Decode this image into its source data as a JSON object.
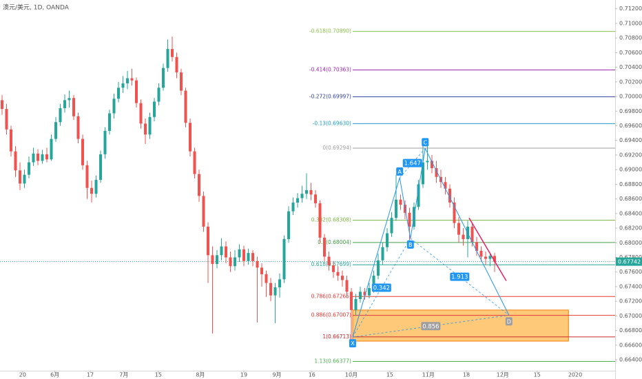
{
  "chart_data": {
    "type": "candlestick",
    "title": "澳元/美元, 1D, OANDA",
    "up_color": "#26a69a",
    "down_color": "#ef5350",
    "xlim": [
      -0.46,
      136.92
    ],
    "ylim": [
      0.6625,
      0.7132
    ],
    "xticks": [
      {
        "value": 4.6,
        "label": "20"
      },
      {
        "value": 11.8,
        "label": "6月"
      },
      {
        "value": 19.7,
        "label": "17"
      },
      {
        "value": 27.2,
        "label": "7月"
      },
      {
        "value": 34.9,
        "label": "15"
      },
      {
        "value": 44.3,
        "label": "8月"
      },
      {
        "value": 54.0,
        "label": "19"
      },
      {
        "value": 61.4,
        "label": "9月"
      },
      {
        "value": 69.2,
        "label": "16"
      },
      {
        "value": 78.0,
        "label": "10月"
      },
      {
        "value": 86.6,
        "label": "15"
      },
      {
        "value": 95.2,
        "label": "11月"
      },
      {
        "value": 103.7,
        "label": "18"
      },
      {
        "value": 111.8,
        "label": "12月"
      },
      {
        "value": 119.5,
        "label": "15"
      },
      {
        "value": 128.0,
        "label": "2020"
      }
    ],
    "yticks": [
      {
        "value": 0.664,
        "label": "0.66400"
      },
      {
        "value": 0.666,
        "label": "0.66600"
      },
      {
        "value": 0.668,
        "label": "0.66800"
      },
      {
        "value": 0.67,
        "label": "0.67000"
      },
      {
        "value": 0.672,
        "label": "0.67200"
      },
      {
        "value": 0.674,
        "label": "0.67400"
      },
      {
        "value": 0.676,
        "label": "0.67600"
      },
      {
        "value": 0.678,
        "label": "0.67800"
      },
      {
        "value": 0.68,
        "label": "0.68000"
      },
      {
        "value": 0.682,
        "label": "0.68200"
      },
      {
        "value": 0.684,
        "label": "0.68400"
      },
      {
        "value": 0.686,
        "label": "0.68600"
      },
      {
        "value": 0.688,
        "label": "0.68800"
      },
      {
        "value": 0.69,
        "label": "0.69000"
      },
      {
        "value": 0.692,
        "label": "0.69200"
      },
      {
        "value": 0.694,
        "label": "0.69400"
      },
      {
        "value": 0.696,
        "label": "0.69600"
      },
      {
        "value": 0.698,
        "label": "0.69800"
      },
      {
        "value": 0.7,
        "label": "0.70000"
      },
      {
        "value": 0.702,
        "label": "0.70200"
      },
      {
        "value": 0.704,
        "label": "0.70400"
      },
      {
        "value": 0.706,
        "label": "0.70600"
      },
      {
        "value": 0.708,
        "label": "0.70800"
      },
      {
        "value": 0.71,
        "label": "0.71000"
      },
      {
        "value": 0.712,
        "label": "0.71200"
      }
    ],
    "current_price": {
      "value": 0.67742,
      "label": "0.67742",
      "color": "#26a69a"
    },
    "fib_levels": [
      {
        "value": 0.7089,
        "label": "-0.618(0.70890)",
        "color": "#8bc34a"
      },
      {
        "value": 0.70363,
        "label": "-0.414(0.70363)",
        "color": "#9c27b0"
      },
      {
        "value": 0.69997,
        "label": "-0.272(0.69997)",
        "color": "#303f9f"
      },
      {
        "value": 0.6963,
        "label": "-0.13(0.69630)",
        "color": "#1e9bc8"
      },
      {
        "value": 0.69294,
        "label": "0(0.69294)",
        "color": "#9e9e9e"
      },
      {
        "value": 0.68308,
        "label": "0.382(0.68308)",
        "color": "#7cb342"
      },
      {
        "value": 0.68004,
        "label": "0.5(0.68004)",
        "color": "#43a047"
      },
      {
        "value": 0.67699,
        "label": "0.618(0.67699)",
        "color": "#26a69a"
      },
      {
        "value": 0.67265,
        "label": "0.786(0.67265)",
        "color": "#e53935"
      },
      {
        "value": 0.67007,
        "label": "0.886(0.67007)",
        "color": "#e53935"
      },
      {
        "value": 0.66713,
        "label": "1(0.66713)",
        "color": "#c62828"
      },
      {
        "value": 0.66377,
        "label": "1.13(0.66377)",
        "color": "#4caf50"
      }
    ],
    "zone": {
      "x": [
        78.3,
        126.5
      ],
      "y": [
        0.6708,
        0.66655
      ],
      "color": "#ffb74d"
    },
    "trendline": {
      "x": [
        104.3,
        112.6
      ],
      "y": [
        0.6834,
        0.6748
      ],
      "color": "#e91e63"
    },
    "pattern": {
      "color": "#2196f3",
      "points": [
        {
          "label": "X",
          "x": 78.3,
          "y": 0.6671
        },
        {
          "label": "A",
          "x": 88.8,
          "y": 0.6889
        },
        {
          "label": "B",
          "x": 91.2,
          "y": 0.6806
        },
        {
          "label": "C",
          "x": 94.5,
          "y": 0.6929
        },
        {
          "label": "D",
          "x": 113.2,
          "y": 0.6701
        }
      ],
      "ratios": [
        0.342,
        1.647,
        1.913,
        0.856
      ]
    },
    "candles": [
      [
        0.6995,
        0.7002,
        0.6975,
        0.6983
      ],
      [
        0.6983,
        0.699,
        0.6948,
        0.6955
      ],
      [
        0.6955,
        0.696,
        0.6918,
        0.6925
      ],
      [
        0.6925,
        0.6932,
        0.689,
        0.6899
      ],
      [
        0.6899,
        0.691,
        0.6872,
        0.6881
      ],
      [
        0.6881,
        0.69,
        0.6875,
        0.6893
      ],
      [
        0.6893,
        0.6918,
        0.6888,
        0.691
      ],
      [
        0.691,
        0.693,
        0.6905,
        0.6922
      ],
      [
        0.6922,
        0.6928,
        0.6906,
        0.6912
      ],
      [
        0.6912,
        0.6927,
        0.6908,
        0.6921
      ],
      [
        0.6921,
        0.693,
        0.691,
        0.6914
      ],
      [
        0.6914,
        0.6948,
        0.6912,
        0.6942
      ],
      [
        0.6942,
        0.6972,
        0.6938,
        0.6965
      ],
      [
        0.6965,
        0.699,
        0.696,
        0.6984
      ],
      [
        0.6984,
        0.7003,
        0.6978,
        0.6995
      ],
      [
        0.6995,
        0.7008,
        0.6985,
        0.6998
      ],
      [
        0.6998,
        0.7002,
        0.6968,
        0.6973
      ],
      [
        0.6973,
        0.6978,
        0.6936,
        0.6942
      ],
      [
        0.6942,
        0.6948,
        0.69,
        0.6906
      ],
      [
        0.6906,
        0.6912,
        0.686,
        0.6875
      ],
      [
        0.6875,
        0.6885,
        0.6855,
        0.6867
      ],
      [
        0.6867,
        0.6892,
        0.6862,
        0.6886
      ],
      [
        0.6886,
        0.6926,
        0.6882,
        0.6921
      ],
      [
        0.6921,
        0.6958,
        0.6915,
        0.6953
      ],
      [
        0.6953,
        0.6982,
        0.6948,
        0.6977
      ],
      [
        0.6977,
        0.7004,
        0.697,
        0.6997
      ],
      [
        0.6997,
        0.702,
        0.6992,
        0.7012
      ],
      [
        0.7012,
        0.7028,
        0.7005,
        0.7018
      ],
      [
        0.7018,
        0.7035,
        0.701,
        0.7025
      ],
      [
        0.7025,
        0.7038,
        0.7015,
        0.7022
      ],
      [
        0.7022,
        0.7026,
        0.6985,
        0.6991
      ],
      [
        0.6991,
        0.6996,
        0.6956,
        0.6963
      ],
      [
        0.6963,
        0.697,
        0.6935,
        0.6948
      ],
      [
        0.6948,
        0.6978,
        0.6942,
        0.6972
      ],
      [
        0.6972,
        0.6998,
        0.6966,
        0.6993
      ],
      [
        0.6993,
        0.7018,
        0.6988,
        0.7012
      ],
      [
        0.7012,
        0.7045,
        0.7008,
        0.7039
      ],
      [
        0.7039,
        0.7078,
        0.7034,
        0.7065
      ],
      [
        0.7065,
        0.7082,
        0.7048,
        0.7054
      ],
      [
        0.7054,
        0.706,
        0.7025,
        0.7033
      ],
      [
        0.7033,
        0.7038,
        0.7002,
        0.7008
      ],
      [
        0.7008,
        0.7012,
        0.6958,
        0.6964
      ],
      [
        0.6964,
        0.697,
        0.6918,
        0.6925
      ],
      [
        0.6925,
        0.693,
        0.6888,
        0.6894
      ],
      [
        0.6894,
        0.69,
        0.6856,
        0.6864
      ],
      [
        0.6864,
        0.687,
        0.6815,
        0.6822
      ],
      [
        0.6822,
        0.6828,
        0.6745,
        0.6783
      ],
      [
        0.6783,
        0.6795,
        0.6676,
        0.6771
      ],
      [
        0.6771,
        0.679,
        0.6765,
        0.6783
      ],
      [
        0.6783,
        0.6806,
        0.6776,
        0.6795
      ],
      [
        0.6795,
        0.6802,
        0.6772,
        0.678
      ],
      [
        0.678,
        0.6788,
        0.676,
        0.6768
      ],
      [
        0.6768,
        0.679,
        0.6762,
        0.678
      ],
      [
        0.678,
        0.6798,
        0.6774,
        0.6791
      ],
      [
        0.6791,
        0.6796,
        0.6768,
        0.6775
      ],
      [
        0.6775,
        0.6792,
        0.677,
        0.6786
      ],
      [
        0.6786,
        0.679,
        0.6768,
        0.6775
      ],
      [
        0.6775,
        0.6781,
        0.6691,
        0.6766
      ],
      [
        0.6766,
        0.6772,
        0.674,
        0.6757
      ],
      [
        0.6757,
        0.6762,
        0.6726,
        0.6745
      ],
      [
        0.6745,
        0.6752,
        0.672,
        0.6728
      ],
      [
        0.6728,
        0.6745,
        0.669,
        0.6739
      ],
      [
        0.6739,
        0.6758,
        0.6725,
        0.675
      ],
      [
        0.675,
        0.681,
        0.6745,
        0.6805
      ],
      [
        0.6805,
        0.685,
        0.68,
        0.6843
      ],
      [
        0.6843,
        0.6862,
        0.6838,
        0.6855
      ],
      [
        0.6855,
        0.6868,
        0.6848,
        0.6861
      ],
      [
        0.6861,
        0.6878,
        0.6855,
        0.6867
      ],
      [
        0.6867,
        0.6895,
        0.686,
        0.6872
      ],
      [
        0.6872,
        0.6882,
        0.6858,
        0.6866
      ],
      [
        0.6866,
        0.6872,
        0.6848,
        0.6854
      ],
      [
        0.6854,
        0.6858,
        0.68,
        0.6807
      ],
      [
        0.6807,
        0.6812,
        0.6775,
        0.6781
      ],
      [
        0.6781,
        0.6788,
        0.6762,
        0.6769
      ],
      [
        0.6769,
        0.6775,
        0.6752,
        0.676
      ],
      [
        0.676,
        0.6768,
        0.6748,
        0.6755
      ],
      [
        0.6755,
        0.6762,
        0.674,
        0.6749
      ],
      [
        0.6749,
        0.6755,
        0.6725,
        0.6733
      ],
      [
        0.6733,
        0.6738,
        0.6667,
        0.6708
      ],
      [
        0.6708,
        0.673,
        0.67,
        0.6723
      ],
      [
        0.6723,
        0.674,
        0.6718,
        0.6733
      ],
      [
        0.6733,
        0.6738,
        0.6722,
        0.6728
      ],
      [
        0.6728,
        0.6745,
        0.6724,
        0.6738
      ],
      [
        0.6738,
        0.6762,
        0.6732,
        0.6755
      ],
      [
        0.6755,
        0.6785,
        0.675,
        0.6776
      ],
      [
        0.6776,
        0.68,
        0.677,
        0.6794
      ],
      [
        0.6794,
        0.682,
        0.6788,
        0.6813
      ],
      [
        0.6813,
        0.6842,
        0.6808,
        0.6834
      ],
      [
        0.6834,
        0.6893,
        0.683,
        0.6859
      ],
      [
        0.6859,
        0.6866,
        0.6845,
        0.6852
      ],
      [
        0.6852,
        0.6858,
        0.6832,
        0.6841
      ],
      [
        0.6841,
        0.6848,
        0.6804,
        0.6822
      ],
      [
        0.6822,
        0.6855,
        0.6818,
        0.6849
      ],
      [
        0.6849,
        0.6886,
        0.6845,
        0.688
      ],
      [
        0.688,
        0.6939,
        0.6875,
        0.691
      ],
      [
        0.691,
        0.6932,
        0.69,
        0.6912
      ],
      [
        0.6912,
        0.692,
        0.6895,
        0.6902
      ],
      [
        0.6902,
        0.6912,
        0.6882,
        0.689
      ],
      [
        0.689,
        0.69,
        0.6875,
        0.6883
      ],
      [
        0.6883,
        0.689,
        0.6866,
        0.6874
      ],
      [
        0.6874,
        0.688,
        0.6848,
        0.6855
      ],
      [
        0.6855,
        0.6862,
        0.682,
        0.6827
      ],
      [
        0.6827,
        0.6835,
        0.68,
        0.6811
      ],
      [
        0.6811,
        0.682,
        0.6796,
        0.6805
      ],
      [
        0.6805,
        0.683,
        0.678,
        0.6822
      ],
      [
        0.6822,
        0.6826,
        0.6795,
        0.6801
      ],
      [
        0.6801,
        0.6808,
        0.6782,
        0.6789
      ],
      [
        0.6789,
        0.6795,
        0.6774,
        0.6781
      ],
      [
        0.6781,
        0.6788,
        0.677,
        0.6778
      ],
      [
        0.6778,
        0.6786,
        0.6768,
        0.6782
      ],
      [
        0.6782,
        0.6786,
        0.676,
        0.6774
      ]
    ]
  }
}
